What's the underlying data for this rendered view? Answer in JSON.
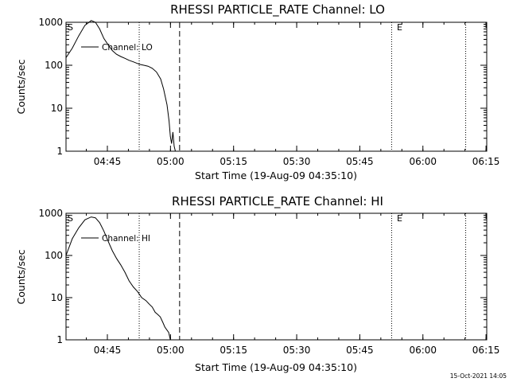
{
  "chart_data": [
    {
      "type": "line",
      "title": "RHESSI PARTICLE_RATE Channel: LO",
      "xlabel": "Start Time (19-Aug-09 04:35:10)",
      "ylabel": "Counts/sec",
      "x_unit": "minutes after 04:35:10",
      "xlim": [
        0,
        100
      ],
      "ylim": [
        1,
        1000
      ],
      "yscale": "log",
      "x_ticks": [
        "04:45",
        "05:00",
        "05:15",
        "05:30",
        "05:45",
        "06:00",
        "06:15"
      ],
      "y_ticks": [
        "1",
        "10",
        "100",
        "1000"
      ],
      "legend": {
        "entries": [
          "Channel: LO"
        ],
        "position": "top-left"
      },
      "markers": {
        "start_label": "S",
        "end_label": "E"
      },
      "dotted_lines_x": [
        17.4,
        77.4,
        95.0
      ],
      "dashed_line_x": 27.0,
      "series": [
        {
          "name": "Channel: LO",
          "x": [
            0.0,
            1.5,
            3.0,
            4.5,
            6.0,
            7.0,
            8.0,
            9.0,
            10.0,
            11.0,
            12.0,
            13.0,
            14.0,
            15.0,
            16.0,
            17.0,
            17.5,
            18.5,
            19.5,
            20.5,
            21.5,
            22.5,
            23.2,
            24.0,
            24.5,
            24.8,
            25.1,
            25.4,
            25.7,
            26.0
          ],
          "values": [
            150,
            250,
            480,
            850,
            1100,
            1000,
            700,
            420,
            300,
            220,
            180,
            160,
            145,
            130,
            120,
            110,
            105,
            100,
            95,
            85,
            70,
            48,
            28,
            12,
            5,
            2.2,
            1.5,
            2.8,
            1.3,
            1.0
          ]
        }
      ]
    },
    {
      "type": "line",
      "title": "RHESSI PARTICLE_RATE Channel: HI",
      "xlabel": "Start Time (19-Aug-09 04:35:10)",
      "ylabel": "Counts/sec",
      "x_unit": "minutes after 04:35:10",
      "xlim": [
        0,
        100
      ],
      "ylim": [
        1,
        1000
      ],
      "yscale": "log",
      "x_ticks": [
        "04:45",
        "05:00",
        "05:15",
        "05:30",
        "05:45",
        "06:00",
        "06:15"
      ],
      "y_ticks": [
        "1",
        "10",
        "100",
        "1000"
      ],
      "legend": {
        "entries": [
          "Channel: HI"
        ],
        "position": "top-left"
      },
      "markers": {
        "start_label": "S",
        "end_label": "E"
      },
      "dotted_lines_x": [
        17.4,
        77.4,
        95.0
      ],
      "dashed_line_x": 27.0,
      "series": [
        {
          "name": "Channel: HI",
          "x": [
            0.0,
            1.5,
            3.0,
            4.5,
            6.0,
            7.0,
            8.0,
            9.0,
            10.0,
            11.0,
            12.0,
            13.0,
            14.0,
            15.0,
            16.0,
            17.0,
            18.0,
            19.0,
            19.8,
            20.5,
            21.2,
            21.8,
            22.4,
            23.0,
            23.5,
            24.0,
            24.4,
            24.8
          ],
          "values": [
            100,
            250,
            450,
            700,
            820,
            780,
            600,
            380,
            220,
            130,
            85,
            60,
            40,
            25,
            18,
            14,
            10,
            8.5,
            7,
            6,
            4.5,
            4,
            3.5,
            2.6,
            2.0,
            1.7,
            1.5,
            1.0
          ]
        }
      ]
    }
  ],
  "timestamp": "15-Oct-2021 14:05"
}
